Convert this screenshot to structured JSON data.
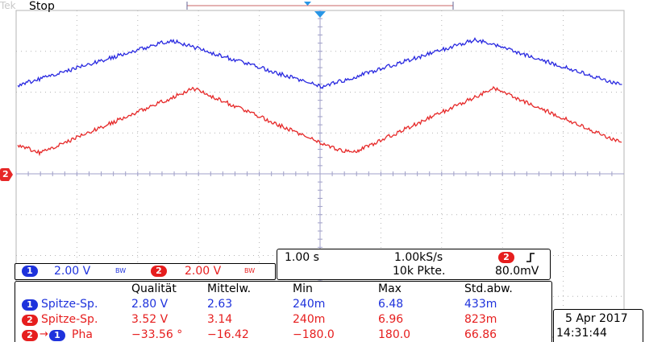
{
  "status": "Stop",
  "watermark": "Tek",
  "colors": {
    "ch1": "#2828e0",
    "ch2": "#e62828",
    "grid": "#b4b4b4",
    "bg": "#ffffff"
  },
  "channels": {
    "ch1": {
      "num": "1",
      "scale": "2.00 V",
      "bw": "BW"
    },
    "ch2": {
      "num": "2",
      "scale": "2.00 V",
      "bw": "BW"
    },
    "ch2_marker": "2"
  },
  "timebase": {
    "time_div": "1.00 s",
    "sample_rate": "1.00kS/s",
    "record": "10k Pkte.",
    "trig_ch": "2",
    "trig_icon": "rising-edge",
    "trig_level": "80.0mV"
  },
  "measurements": {
    "headers": [
      "Qualität",
      "Mittelw.",
      "Min",
      "Max",
      "Std.abw."
    ],
    "rows": [
      {
        "ch": "1",
        "ch2": "",
        "label": "Spitze-Sp.",
        "values": [
          "2.80 V",
          "2.63",
          "240m",
          "6.48",
          "433m"
        ]
      },
      {
        "ch": "2",
        "ch2": "",
        "label": "Spitze-Sp.",
        "values": [
          "3.52 V",
          "3.14",
          "240m",
          "6.96",
          "823m"
        ]
      },
      {
        "ch": "2",
        "ch2": "1",
        "label": "Pha",
        "values": [
          "−33.56 °",
          "−16.42",
          "−180.0",
          "180.0",
          "66.86"
        ]
      }
    ]
  },
  "datetime": {
    "date": "5 Apr  2017",
    "time": "14:31:44"
  }
}
